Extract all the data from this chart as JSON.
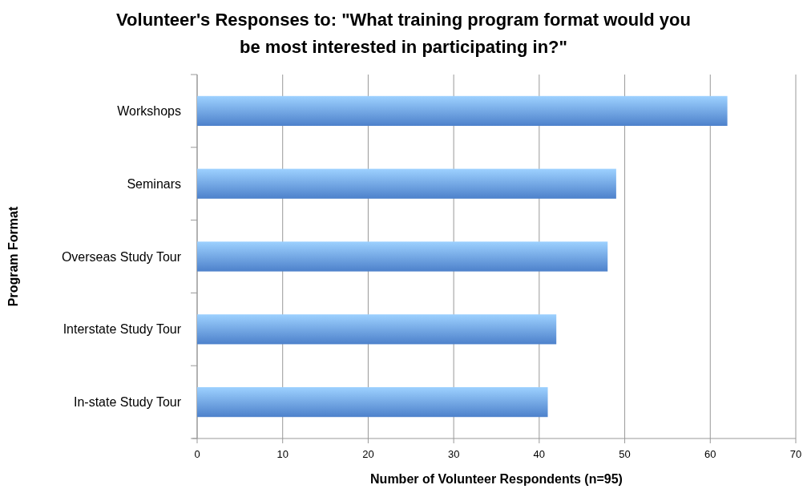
{
  "chart_data": {
    "type": "bar",
    "orientation": "horizontal",
    "title": "Volunteer's Responses to: \"What training program format would you be most interested in participating in?\"",
    "xlabel": "Number of Volunteer Respondents (n=95)",
    "ylabel": "Program Format",
    "categories": [
      "Workshops",
      "Seminars",
      "Overseas Study Tour",
      "Interstate Study Tour",
      "In-state Study Tour"
    ],
    "values": [
      62,
      49,
      48,
      42,
      41
    ],
    "color": "#75a9e5",
    "xlim": [
      0,
      70
    ],
    "xticks": [
      0,
      10,
      20,
      30,
      40,
      50,
      60,
      70
    ],
    "grid": "x"
  }
}
